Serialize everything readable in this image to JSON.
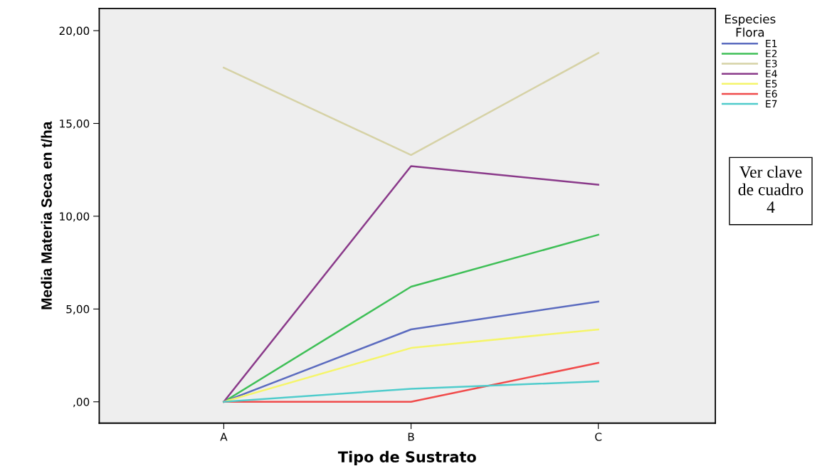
{
  "chart_data": {
    "type": "line",
    "xlabel": "Tipo de Sustrato",
    "ylabel": "Media Materia Seca en t/ha",
    "legend_title": "Especies\nFlora",
    "categories": [
      "A",
      "B",
      "C"
    ],
    "series": [
      {
        "name": "E1",
        "color": "#5b6bbf",
        "values": [
          0,
          3.9,
          5.4
        ]
      },
      {
        "name": "E2",
        "color": "#3fbf57",
        "values": [
          0,
          6.2,
          9.0
        ]
      },
      {
        "name": "E3",
        "color": "#d6d2a6",
        "values": [
          18.0,
          13.3,
          18.8
        ]
      },
      {
        "name": "E4",
        "color": "#8a3a8a",
        "values": [
          0,
          12.7,
          11.7
        ]
      },
      {
        "name": "E5",
        "color": "#f5f56a",
        "values": [
          0,
          2.9,
          3.9
        ]
      },
      {
        "name": "E6",
        "color": "#f04b4b",
        "values": [
          0,
          0,
          2.1
        ]
      },
      {
        "name": "E7",
        "color": "#4fcccc",
        "values": [
          0,
          0.7,
          1.1
        ]
      }
    ],
    "ylim": [
      -1.15,
      21.2
    ],
    "yticks": [
      {
        "value": 0,
        "label": ",00"
      },
      {
        "value": 5,
        "label": "5,00"
      },
      {
        "value": 10,
        "label": "10,00"
      },
      {
        "value": 15,
        "label": "15,00"
      },
      {
        "value": 20,
        "label": "20,00"
      }
    ],
    "grid": false,
    "legend": "right",
    "marker": "none",
    "line_style": "solid",
    "annotations": [
      "Ver clave\nde cuadro\n4"
    ]
  }
}
